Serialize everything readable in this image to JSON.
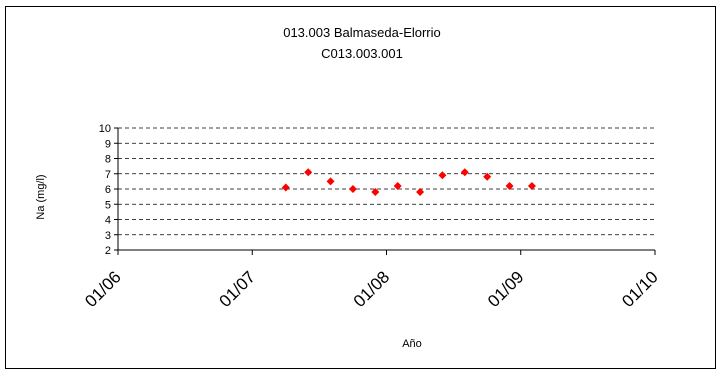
{
  "chart_data": {
    "type": "scatter",
    "title": "013.003 Balmaseda-Elorrio",
    "subtitle": "C013.003.001",
    "xlabel": "Año",
    "ylabel": "Na (mg/l)",
    "x_ticks": [
      "01/06",
      "01/07",
      "01/08",
      "01/09",
      "01/10"
    ],
    "ylim": [
      2,
      10
    ],
    "y_ticks": [
      2,
      3,
      4,
      5,
      6,
      7,
      8,
      9,
      10
    ],
    "grid": "horizontal dashed",
    "legend": "none",
    "series": [
      {
        "marker": "diamond",
        "color": "#ff0000",
        "points": [
          {
            "x": "2007-04",
            "y": 6.1
          },
          {
            "x": "2007-06",
            "y": 7.1
          },
          {
            "x": "2007-08",
            "y": 6.5
          },
          {
            "x": "2007-10",
            "y": 6.0
          },
          {
            "x": "2007-12",
            "y": 5.8
          },
          {
            "x": "2008-02",
            "y": 6.2
          },
          {
            "x": "2008-04",
            "y": 5.8
          },
          {
            "x": "2008-06",
            "y": 6.9
          },
          {
            "x": "2008-08",
            "y": 7.1
          },
          {
            "x": "2008-10",
            "y": 6.8
          },
          {
            "x": "2008-12",
            "y": 6.2
          },
          {
            "x": "2009-02",
            "y": 6.2
          }
        ]
      }
    ]
  }
}
